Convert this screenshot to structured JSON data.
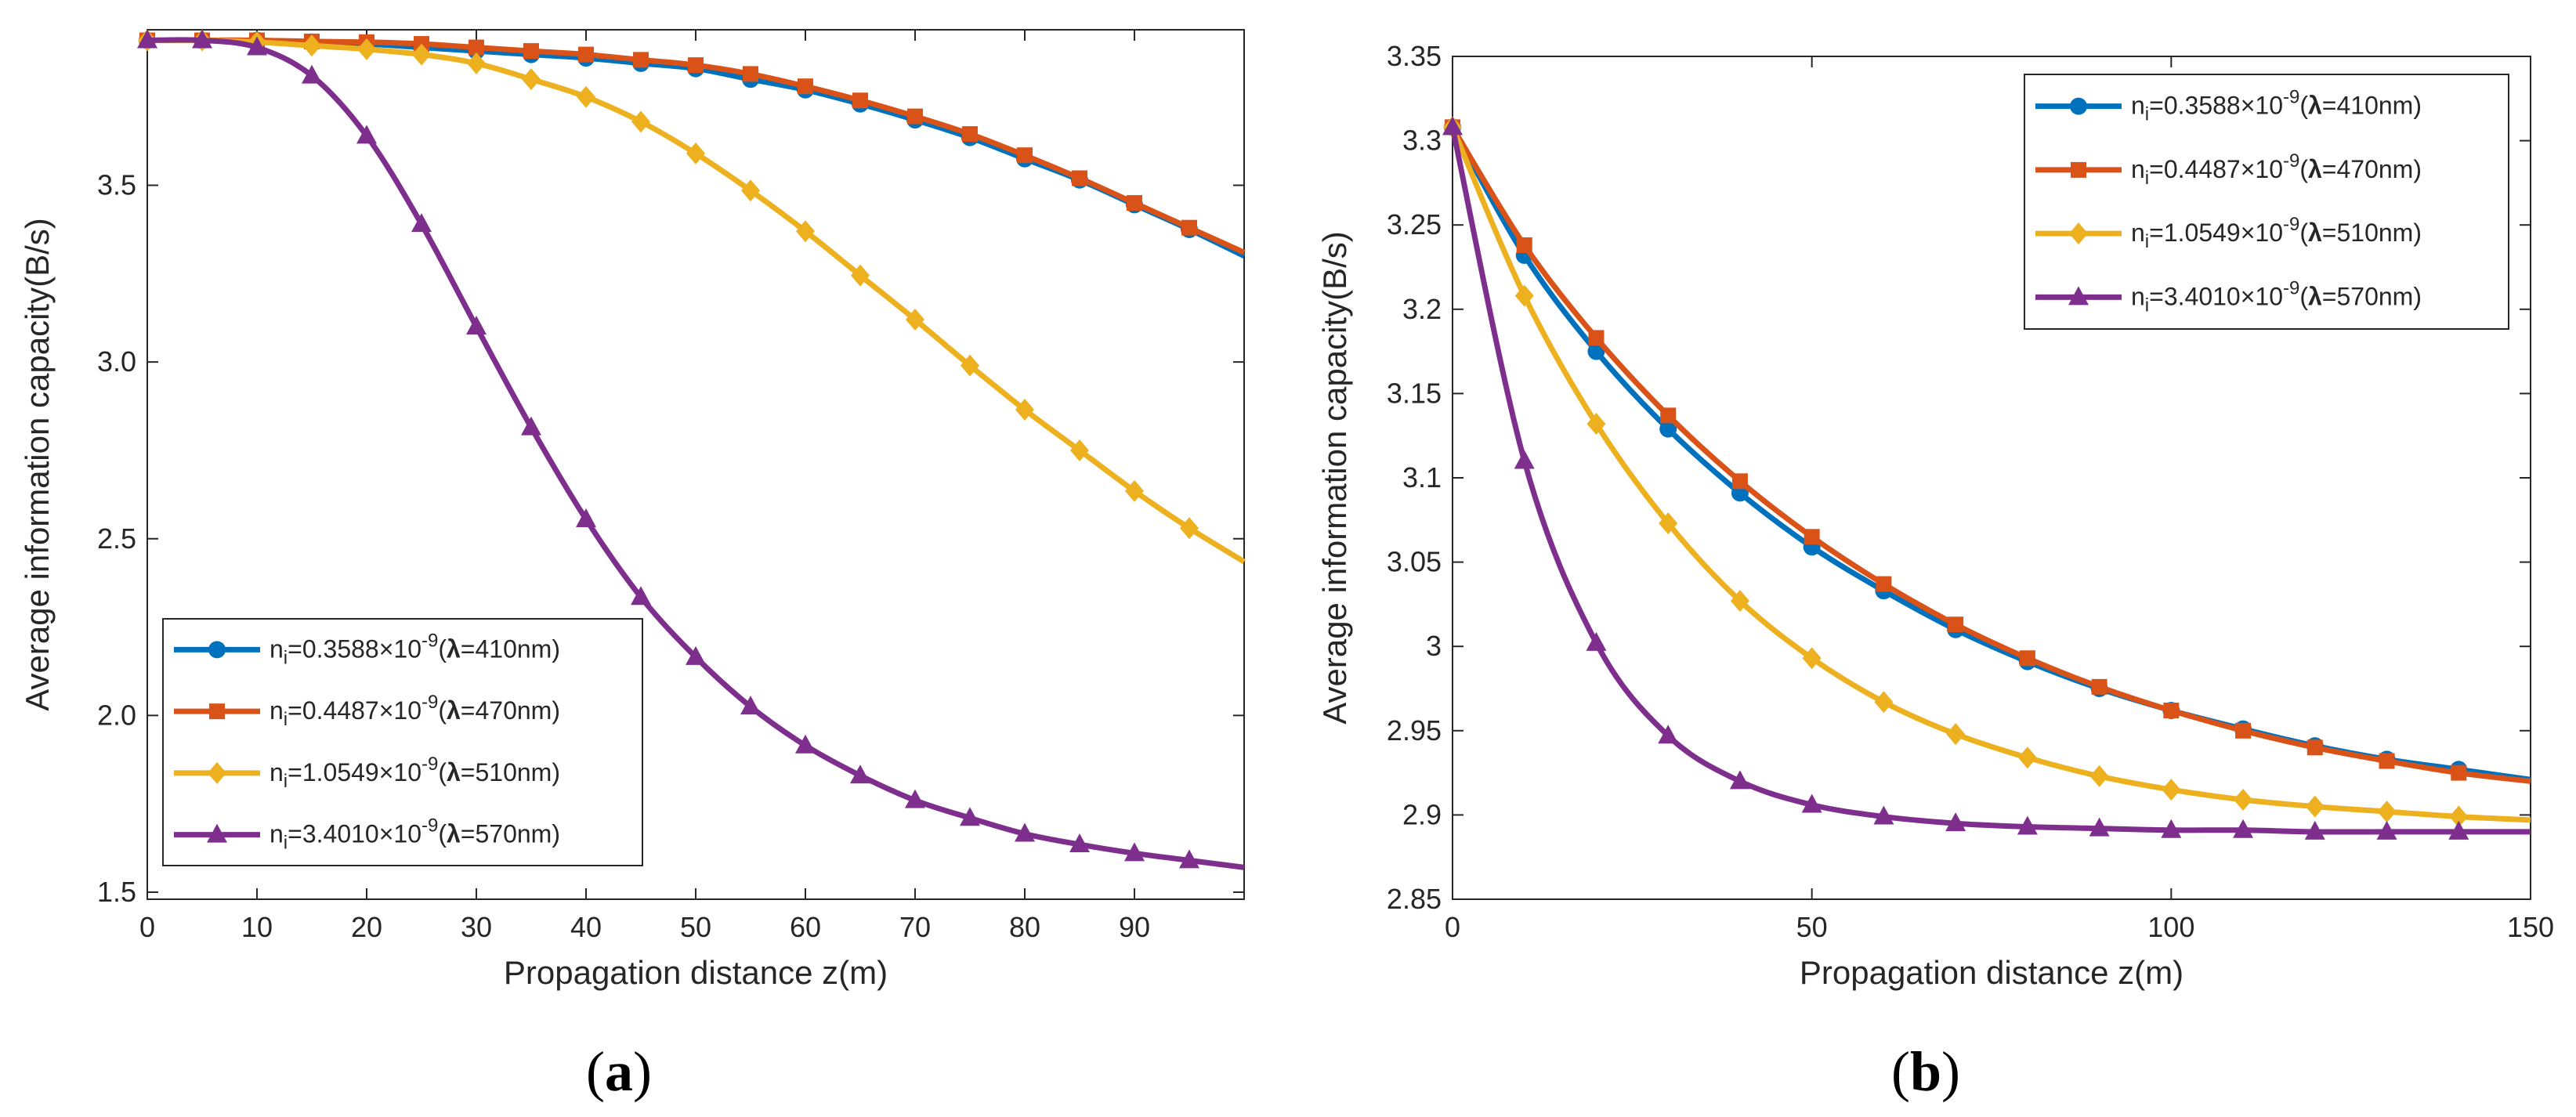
{
  "colors": {
    "blue": "#0072BD",
    "orange": "#D95319",
    "yellow": "#EDB120",
    "purple": "#7E2F8E",
    "axis": "#262626"
  },
  "legend_entries": [
    {
      "prefix": "n",
      "sub": "i",
      "mid": "=0.3588×10",
      "sup": "-9",
      "open": "(",
      "lam": "λ",
      "rest": "=410nm)"
    },
    {
      "prefix": "n",
      "sub": "i",
      "mid": "=0.4487×10",
      "sup": "-9",
      "open": "(",
      "lam": "λ",
      "rest": "=470nm)"
    },
    {
      "prefix": "n",
      "sub": "i",
      "mid": "=1.0549×10",
      "sup": "-9",
      "open": "(",
      "lam": "λ",
      "rest": "=510nm)"
    },
    {
      "prefix": "n",
      "sub": "i",
      "mid": "=3.4010×10",
      "sup": "-9",
      "open": "(",
      "lam": "λ",
      "rest": "=570nm)"
    }
  ],
  "chart_data": [
    {
      "panel_label": "a",
      "type": "line",
      "xlabel": "Propagation distance z(m)",
      "ylabel": "Average information capacity(B/s)",
      "xlim": [
        0,
        100
      ],
      "ylim": [
        1.48,
        3.94
      ],
      "xticks": [
        0,
        10,
        20,
        30,
        40,
        50,
        60,
        70,
        80,
        90
      ],
      "xtick_labels": [
        "0",
        "10",
        "20",
        "30",
        "40",
        "50",
        "60",
        "70",
        "80",
        "90"
      ],
      "yticks": [
        1.5,
        2.0,
        2.5,
        3.0,
        3.5
      ],
      "ytick_labels": [
        "1.5",
        "2.0",
        "2.5",
        "3.0",
        "3.5"
      ],
      "legend_position": "lower-left",
      "x": [
        0,
        5,
        10,
        15,
        20,
        25,
        30,
        35,
        40,
        45,
        50,
        55,
        60,
        65,
        70,
        75,
        80,
        85,
        90,
        95,
        100
      ],
      "series": [
        {
          "name": "n_i=0.3588×10^-9 (λ=410nm)",
          "marker": "circle",
          "values": [
            3.91,
            3.91,
            3.91,
            3.905,
            3.9,
            3.89,
            3.88,
            3.87,
            3.86,
            3.845,
            3.83,
            3.8,
            3.77,
            3.73,
            3.685,
            3.635,
            3.575,
            3.515,
            3.445,
            3.375,
            3.3
          ]
        },
        {
          "name": "n_i=0.4487×10^-9 (λ=470nm)",
          "marker": "square",
          "values": [
            3.91,
            3.91,
            3.91,
            3.907,
            3.905,
            3.9,
            3.89,
            3.88,
            3.87,
            3.855,
            3.84,
            3.815,
            3.78,
            3.74,
            3.695,
            3.645,
            3.585,
            3.52,
            3.45,
            3.38,
            3.31
          ]
        },
        {
          "name": "n_i=1.0549×10^-9 (λ=510nm)",
          "marker": "diamond",
          "values": [
            3.91,
            3.91,
            3.905,
            3.895,
            3.885,
            3.87,
            3.845,
            3.8,
            3.75,
            3.68,
            3.59,
            3.485,
            3.37,
            3.245,
            3.12,
            2.99,
            2.865,
            2.75,
            2.635,
            2.53,
            2.435
          ]
        },
        {
          "name": "n_i=3.4010×10^-9 (λ=570nm)",
          "marker": "triangle",
          "values": [
            3.91,
            3.91,
            3.89,
            3.81,
            3.64,
            3.39,
            3.1,
            2.815,
            2.555,
            2.335,
            2.165,
            2.025,
            1.915,
            1.83,
            1.76,
            1.71,
            1.665,
            1.635,
            1.61,
            1.59,
            1.57
          ]
        }
      ]
    },
    {
      "panel_label": "b",
      "type": "line",
      "xlabel": "Propagation distance z(m)",
      "ylabel": "Average information capacity(B/s)",
      "xlim": [
        0,
        150
      ],
      "ylim": [
        2.85,
        3.35
      ],
      "xticks": [
        0,
        50,
        100,
        150
      ],
      "xtick_labels": [
        "0",
        "50",
        "100",
        "150"
      ],
      "yticks": [
        2.85,
        2.9,
        2.95,
        3.0,
        3.05,
        3.1,
        3.15,
        3.2,
        3.25,
        3.3,
        3.35
      ],
      "ytick_labels": [
        "2.85",
        "2.9",
        "2.95",
        "3",
        "3.05",
        "3.1",
        "3.15",
        "3.2",
        "3.25",
        "3.3",
        "3.35"
      ],
      "legend_position": "top-right",
      "x": [
        0,
        10,
        20,
        30,
        40,
        50,
        60,
        70,
        80,
        90,
        100,
        110,
        120,
        130,
        140,
        150
      ],
      "series": [
        {
          "name": "n_i=0.3588×10^-9 (λ=410nm)",
          "marker": "circle",
          "values": [
            3.308,
            3.232,
            3.175,
            3.129,
            3.091,
            3.059,
            3.033,
            3.01,
            2.991,
            2.975,
            2.962,
            2.951,
            2.941,
            2.933,
            2.927,
            2.921
          ]
        },
        {
          "name": "n_i=0.4487×10^-9 (λ=470nm)",
          "marker": "square",
          "values": [
            3.308,
            3.238,
            3.183,
            3.137,
            3.098,
            3.065,
            3.037,
            3.013,
            2.993,
            2.976,
            2.962,
            2.95,
            2.94,
            2.932,
            2.925,
            2.92
          ]
        },
        {
          "name": "n_i=1.0549×10^-9 (λ=510nm)",
          "marker": "diamond",
          "values": [
            3.308,
            3.208,
            3.132,
            3.073,
            3.027,
            2.993,
            2.967,
            2.948,
            2.934,
            2.923,
            2.915,
            2.909,
            2.905,
            2.902,
            2.899,
            2.897
          ]
        },
        {
          "name": "n_i=3.4010×10^-9 (λ=570nm)",
          "marker": "triangle",
          "values": [
            3.308,
            3.11,
            3.002,
            2.947,
            2.92,
            2.906,
            2.899,
            2.895,
            2.893,
            2.892,
            2.891,
            2.891,
            2.89,
            2.89,
            2.89,
            2.89
          ]
        }
      ]
    }
  ]
}
